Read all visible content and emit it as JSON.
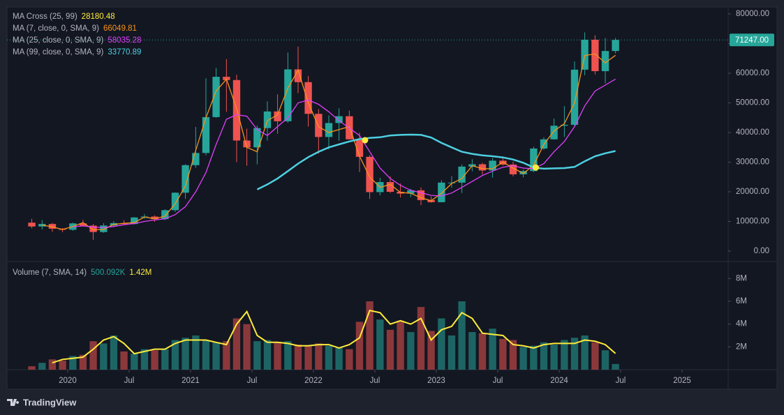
{
  "chart_data": {
    "type": "candlestick",
    "xlim": [
      2019.506,
      2025.375
    ],
    "xticks": [
      2020,
      {
        "value": 2020.5,
        "label": "Jul"
      },
      2021,
      {
        "value": 2021.5,
        "label": "Jul"
      },
      2022,
      {
        "value": 2022.5,
        "label": "Jul"
      },
      2023,
      {
        "value": 2023.5,
        "label": "Jul"
      },
      2024,
      {
        "value": 2024.5,
        "label": "Jul"
      },
      2025
    ],
    "ylim": [
      -3529,
      82353
    ],
    "yticks": [
      {
        "value": 0,
        "label": "0.00"
      },
      {
        "value": 10000,
        "label": "10000.00"
      },
      {
        "value": 20000,
        "label": "20000.00"
      },
      {
        "value": 30000,
        "label": "30000.00"
      },
      {
        "value": 40000,
        "label": "40000.00"
      },
      {
        "value": 50000,
        "label": "50000.00"
      },
      {
        "value": 60000,
        "label": "60000.00"
      },
      {
        "value": 70000,
        "label": "70000.00"
      },
      {
        "value": 80000,
        "label": "80000.00"
      }
    ],
    "grid": false,
    "up_color": "#26a69a",
    "down_color": "#ef5350",
    "x": [
      2019.708,
      2019.792,
      2019.875,
      2019.958,
      2020.042,
      2020.125,
      2020.208,
      2020.292,
      2020.375,
      2020.458,
      2020.542,
      2020.625,
      2020.708,
      2020.792,
      2020.875,
      2020.958,
      2021.042,
      2021.125,
      2021.208,
      2021.292,
      2021.375,
      2021.458,
      2021.542,
      2021.625,
      2021.708,
      2021.792,
      2021.875,
      2021.958,
      2022.042,
      2022.125,
      2022.208,
      2022.292,
      2022.375,
      2022.458,
      2022.542,
      2022.625,
      2022.708,
      2022.792,
      2022.875,
      2022.958,
      2023.042,
      2023.125,
      2023.208,
      2023.292,
      2023.375,
      2023.458,
      2023.542,
      2023.625,
      2023.708,
      2023.792,
      2023.875,
      2023.958,
      2024.042,
      2024.125,
      2024.208,
      2024.292,
      2024.375,
      2024.458
    ],
    "open": [
      9600,
      8300,
      9150,
      7550,
      7190,
      9350,
      8600,
      6430,
      8630,
      9450,
      9140,
      11350,
      11650,
      10780,
      13800,
      19700,
      28990,
      33100,
      45200,
      58800,
      57700,
      37300,
      35000,
      41500,
      47100,
      43800,
      61300,
      57000,
      46300,
      38500,
      43200,
      45500,
      37700,
      31800,
      19900,
      23300,
      20000,
      19400,
      20500,
      17200,
      16500,
      23100,
      23100,
      28500,
      29300,
      27200,
      30500,
      29200,
      25900,
      27000,
      34600,
      37700,
      42300,
      42600,
      61200,
      71300,
      60700,
      67500
    ],
    "high": [
      10900,
      10500,
      9500,
      7750,
      9600,
      10500,
      9170,
      9450,
      10080,
      10400,
      11450,
      12470,
      12050,
      14100,
      19800,
      29300,
      41900,
      58300,
      61800,
      64800,
      59500,
      41300,
      42400,
      50500,
      52900,
      67000,
      69000,
      59100,
      47900,
      45800,
      48200,
      47400,
      40000,
      32400,
      24700,
      25200,
      22800,
      21000,
      21500,
      18400,
      23900,
      25300,
      29200,
      31000,
      29800,
      31400,
      31800,
      30200,
      27500,
      35200,
      38400,
      44700,
      48900,
      64000,
      73800,
      72800,
      71900,
      71900
    ],
    "low": [
      7700,
      7300,
      6500,
      6400,
      6870,
      8450,
      3800,
      6150,
      8100,
      8900,
      8950,
      10900,
      9850,
      10400,
      13200,
      17600,
      28100,
      32300,
      45000,
      47000,
      30000,
      28800,
      29300,
      37300,
      39600,
      43300,
      53300,
      42000,
      32900,
      34300,
      37200,
      37700,
      26700,
      17600,
      18800,
      19600,
      18100,
      18200,
      15500,
      16300,
      16500,
      21400,
      19600,
      26900,
      25800,
      24800,
      28900,
      25200,
      24900,
      26600,
      34100,
      37600,
      38500,
      41900,
      59300,
      59600,
      56600,
      66700
    ],
    "close": [
      8300,
      9150,
      7550,
      7190,
      9350,
      8600,
      6430,
      8630,
      9450,
      9140,
      11350,
      11650,
      10780,
      13800,
      19700,
      28990,
      33100,
      45200,
      58800,
      57700,
      37300,
      35000,
      41500,
      47100,
      43800,
      61300,
      57000,
      46300,
      38500,
      43200,
      45500,
      37700,
      31800,
      19900,
      23300,
      20000,
      19400,
      20500,
      17200,
      16500,
      23100,
      23100,
      28500,
      29300,
      27200,
      30500,
      29200,
      25900,
      27000,
      34600,
      37700,
      42300,
      42600,
      61200,
      71300,
      60700,
      67500,
      71247
    ],
    "last_price_label": "71247.00",
    "series": [
      {
        "name": "MA (7, close, 0, SMA, 9)",
        "color": "#f7931a",
        "values": [
          null,
          8800,
          8200,
          7300,
          8300,
          9600,
          7200,
          7300,
          9000,
          9400,
          9600,
          11500,
          10900,
          11800,
          16000,
          22000,
          34000,
          45000,
          54000,
          58000,
          48000,
          35000,
          33500,
          44000,
          46000,
          55000,
          61000,
          50000,
          42000,
          40000,
          41000,
          42000,
          32000,
          25000,
          21500,
          22500,
          19800,
          19500,
          18000,
          17000,
          19500,
          22800,
          24500,
          28800,
          27800,
          27800,
          30000,
          28000,
          26200,
          29000,
          36000,
          40500,
          43000,
          50000,
          66000,
          66500,
          63500,
          66049.81
        ]
      },
      {
        "name": "MA (25, close, 0, SMA, 9)",
        "color": "#e040fb",
        "values": [
          null,
          null,
          null,
          null,
          8200,
          8500,
          8100,
          7900,
          8300,
          8900,
          9300,
          10000,
          10500,
          10900,
          12300,
          15000,
          20000,
          26500,
          36000,
          44500,
          46000,
          45500,
          41000,
          39000,
          42000,
          45000,
          50000,
          51000,
          49500,
          47000,
          44000,
          41500,
          39000,
          33500,
          28000,
          24500,
          22200,
          20500,
          19700,
          18800,
          18600,
          19600,
          21500,
          23500,
          25500,
          27000,
          28300,
          28800,
          28000,
          27800,
          29500,
          33500,
          37000,
          42000,
          49000,
          54000,
          56000,
          58035.28
        ]
      },
      {
        "name": "MA (99, close, 0, SMA, 9)",
        "color": "#4dd0e1",
        "values": [
          null,
          null,
          null,
          null,
          null,
          null,
          null,
          null,
          null,
          null,
          null,
          null,
          null,
          null,
          null,
          null,
          null,
          null,
          null,
          null,
          null,
          null,
          20800,
          22500,
          24500,
          27000,
          29500,
          31700,
          33500,
          35000,
          36000,
          37000,
          37800,
          38200,
          38400,
          39000,
          39200,
          39300,
          39200,
          38300,
          36500,
          35000,
          33500,
          32800,
          32300,
          32000,
          31600,
          30900,
          29800,
          28200,
          27800,
          27900,
          28000,
          28400,
          30300,
          32000,
          33000,
          33770.89
        ]
      }
    ],
    "cross": {
      "name": "MA Cross (25, 99)",
      "color": "#ffeb3b",
      "x": [
        2022.42,
        2023.81
      ],
      "y": [
        37400,
        28180.48
      ]
    },
    "volume": {
      "name": "Volume (7, SMA, 14)",
      "ylim": [
        0,
        9490000
      ],
      "yticks": [
        {
          "value": 2000000,
          "label": "2M"
        },
        {
          "value": 4000000,
          "label": "4M"
        },
        {
          "value": 6000000,
          "label": "6M"
        },
        {
          "value": 8000000,
          "label": "8M"
        }
      ],
      "values": [
        300000,
        600000,
        900000,
        800000,
        1200000,
        1300000,
        2500000,
        2300000,
        3000000,
        1600000,
        1400000,
        1800000,
        1700000,
        1800000,
        2600000,
        2800000,
        3000000,
        2600000,
        2400000,
        2500000,
        4500000,
        4000000,
        2500000,
        2600000,
        2400000,
        2500000,
        2200000,
        2100000,
        2300000,
        2100000,
        1900000,
        1800000,
        4200000,
        6000000,
        4400000,
        3500000,
        4300000,
        3300000,
        5500000,
        3400000,
        4500000,
        3000000,
        6000000,
        3300000,
        3200000,
        3600000,
        2700000,
        2600000,
        2000000,
        2100000,
        2400000,
        2200000,
        2600000,
        2800000,
        3000000,
        2400000,
        1700000,
        500092
      ],
      "series": [
        {
          "color": "#ffeb3b",
          "values": [
            null,
            null,
            600000,
            900000,
            1000000,
            1100000,
            1800000,
            2600000,
            2900000,
            2300000,
            1400000,
            1600000,
            1800000,
            1800000,
            2300000,
            2600000,
            2600000,
            2600000,
            2400000,
            2200000,
            4000000,
            5100000,
            3000000,
            2400000,
            2400000,
            2300000,
            2100000,
            2100000,
            2200000,
            2200000,
            1900000,
            2200000,
            2800000,
            5200000,
            5000000,
            4000000,
            4300000,
            4000000,
            4500000,
            2600000,
            3500000,
            3800000,
            5000000,
            4500000,
            3200000,
            3100000,
            3000000,
            2200000,
            2100000,
            1900000,
            2200000,
            2300000,
            2300000,
            2300000,
            2600000,
            2500000,
            2200000,
            1420000
          ]
        }
      ],
      "legend_values": [
        "500.092K",
        "1.42M"
      ]
    }
  },
  "footer": {
    "brand": "TradingView"
  }
}
